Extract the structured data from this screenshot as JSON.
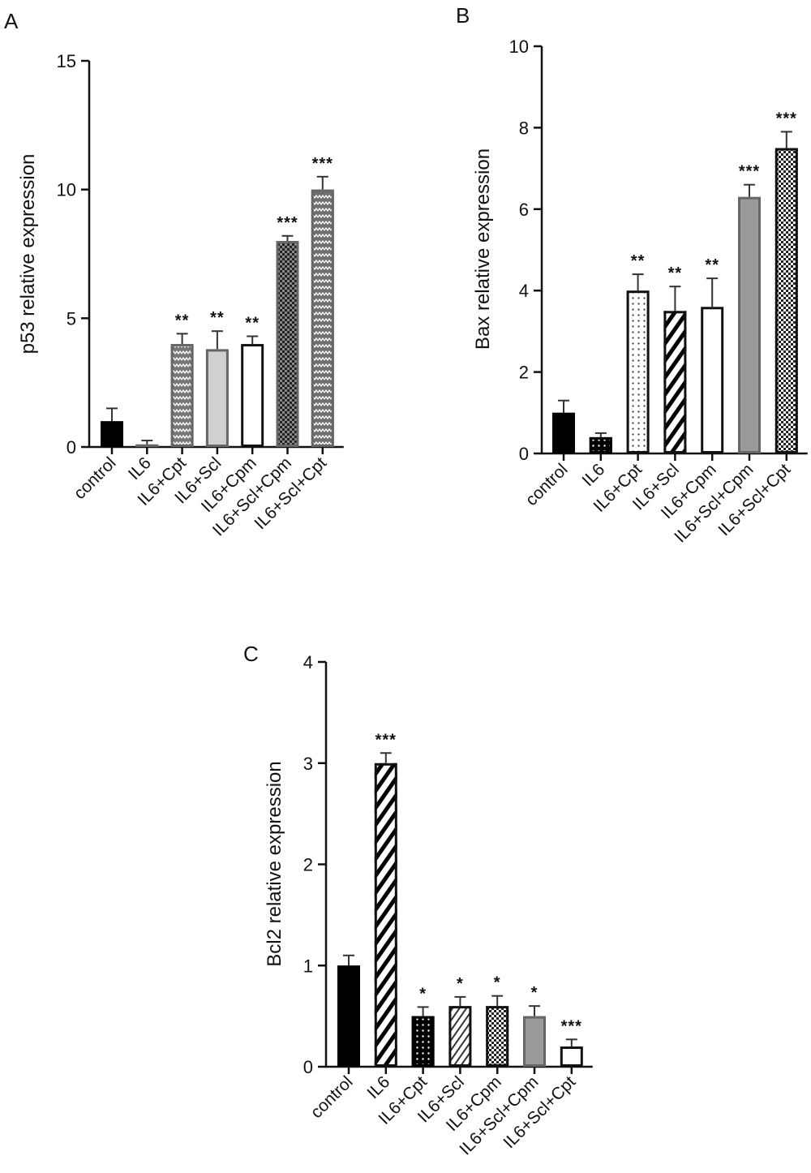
{
  "chart_data": [
    {
      "type": "bar",
      "panel": "A",
      "ylabel": "p53 relative expression",
      "ylim": [
        0,
        15
      ],
      "yticks": [
        0,
        5,
        10,
        15
      ],
      "categories": [
        "control",
        "IL6",
        "IL6+Cpt",
        "IL6+Scl",
        "IL6+Cpm",
        "IL6+Scl+Cpm",
        "IL6+Scl+Cpt"
      ],
      "values": [
        1.0,
        0.1,
        4.0,
        3.8,
        4.0,
        8.0,
        10.0
      ],
      "errors": [
        0.5,
        0.15,
        0.4,
        0.7,
        0.3,
        0.2,
        0.5
      ],
      "significance": [
        "",
        "",
        "**",
        "**",
        "**",
        "***",
        "***"
      ],
      "fills": [
        {
          "color": "#000000",
          "pattern": "none"
        },
        {
          "color": "#8a8a8a",
          "pattern": "none"
        },
        {
          "color": "#777777",
          "pattern": "zigzag"
        },
        {
          "color": "#d0d0d0",
          "pattern": "none"
        },
        {
          "color": "#ffffff",
          "pattern": "none"
        },
        {
          "color": "#888888",
          "pattern": "checker"
        },
        {
          "color": "#6e6e6e",
          "pattern": "zigzag"
        }
      ],
      "grid": false
    },
    {
      "type": "bar",
      "panel": "B",
      "ylabel": "Bax relative expression",
      "ylim": [
        0,
        10
      ],
      "yticks": [
        0,
        2,
        4,
        6,
        8,
        10
      ],
      "categories": [
        "control",
        "IL6",
        "IL6+Cpt",
        "IL6+Scl",
        "IL6+Cpm",
        "IL6+Scl+Cpm",
        "IL6+Scl+Cpt"
      ],
      "values": [
        1.0,
        0.4,
        4.0,
        3.5,
        3.6,
        6.3,
        7.5
      ],
      "errors": [
        0.3,
        0.1,
        0.4,
        0.6,
        0.7,
        0.3,
        0.4
      ],
      "significance": [
        "",
        "",
        "**",
        "**",
        "**",
        "***",
        "***"
      ],
      "fills": [
        {
          "color": "#000000",
          "pattern": "none"
        },
        {
          "color": "#000000",
          "pattern": "dots-light"
        },
        {
          "color": "#ffffff",
          "pattern": "dots"
        },
        {
          "color": "#ffffff",
          "pattern": "stripes-bold"
        },
        {
          "color": "#ffffff",
          "pattern": "none"
        },
        {
          "color": "#9a9a9a",
          "pattern": "none"
        },
        {
          "color": "#ffffff",
          "pattern": "checker"
        }
      ],
      "grid": false
    },
    {
      "type": "bar",
      "panel": "C",
      "ylabel": "Bcl2 relative expression",
      "ylim": [
        0,
        4
      ],
      "yticks": [
        0,
        1,
        2,
        3,
        4
      ],
      "categories": [
        "control",
        "IL6",
        "IL6+Cpt",
        "IL6+Scl",
        "IL6+Cpm",
        "IL6+Scl+Cpm",
        "IL6+Scl+Cpt"
      ],
      "values": [
        1.0,
        3.0,
        0.5,
        0.6,
        0.6,
        0.5,
        0.2
      ],
      "errors": [
        0.1,
        0.1,
        0.09,
        0.09,
        0.1,
        0.1,
        0.07
      ],
      "significance": [
        "",
        "***",
        "*",
        "*",
        "*",
        "*",
        "***"
      ],
      "fills": [
        {
          "color": "#000000",
          "pattern": "none"
        },
        {
          "color": "#ffffff",
          "pattern": "stripes-bold"
        },
        {
          "color": "#000000",
          "pattern": "dots-light"
        },
        {
          "color": "#ffffff",
          "pattern": "stripes-thin"
        },
        {
          "color": "#ffffff",
          "pattern": "checker"
        },
        {
          "color": "#9a9a9a",
          "pattern": "none"
        },
        {
          "color": "#ffffff",
          "pattern": "none"
        }
      ],
      "grid": false
    }
  ]
}
